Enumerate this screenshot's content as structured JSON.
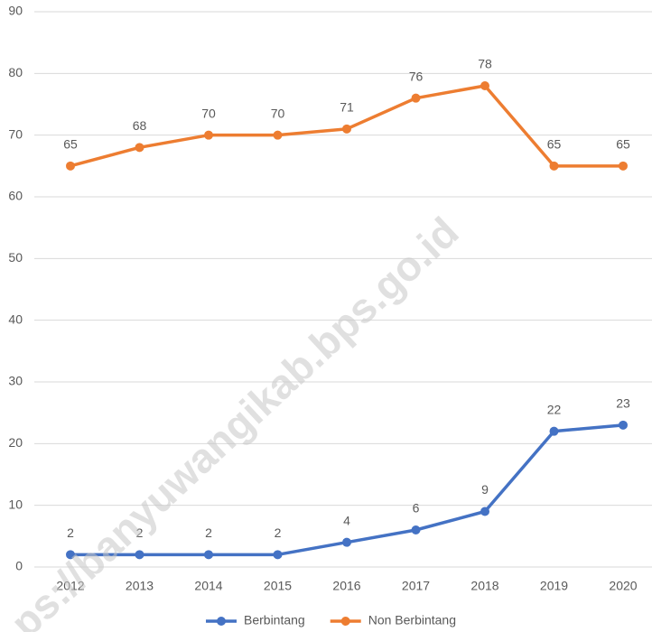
{
  "chart_data": {
    "type": "line",
    "categories": [
      "2012",
      "2013",
      "2014",
      "2015",
      "2016",
      "2017",
      "2018",
      "2019",
      "2020"
    ],
    "series": [
      {
        "name": "Berbintang",
        "color": "#4472c4",
        "values": [
          2,
          2,
          2,
          2,
          4,
          6,
          9,
          22,
          23
        ]
      },
      {
        "name": "Non Berbintang",
        "color": "#ed7d31",
        "values": [
          65,
          68,
          70,
          70,
          71,
          76,
          78,
          65,
          65
        ]
      }
    ],
    "ylim": [
      0,
      90
    ],
    "yticks": [
      0,
      10,
      20,
      30,
      40,
      50,
      60,
      70,
      80,
      90
    ],
    "grid": true,
    "legend": "bottom",
    "watermark": "ps://banyuwangikab.bps.go.id"
  }
}
